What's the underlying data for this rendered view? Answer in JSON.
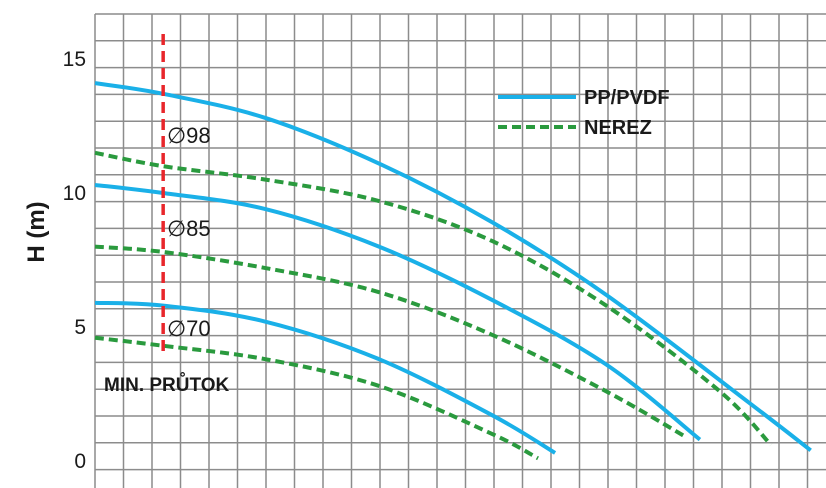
{
  "chart_data": {
    "type": "line",
    "title": "",
    "xlabel": "",
    "ylabel": "H (m)",
    "ylim": [
      0,
      16
    ],
    "yticks": [
      0,
      5,
      10,
      15
    ],
    "grid": true,
    "legend_position": "top-right",
    "legend": [
      {
        "label": "PP/PVDF",
        "style": "solid",
        "color": "#1ab0e8"
      },
      {
        "label": "NEREZ",
        "style": "dashed",
        "color": "#2a9a3e"
      }
    ],
    "series": [
      {
        "group": "∅98",
        "material": "PP/PVDF",
        "style": "solid",
        "color": "#1ab0e8",
        "points": [
          [
            0,
            14.1
          ],
          [
            2.4,
            13.7
          ],
          [
            6,
            12.8
          ],
          [
            10,
            11.1
          ],
          [
            14,
            8.9
          ],
          [
            18,
            6.2
          ],
          [
            23,
            2.2
          ],
          [
            25.2,
            0.4
          ]
        ]
      },
      {
        "group": "∅98",
        "material": "NEREZ",
        "style": "dashed",
        "color": "#2a9a3e",
        "points": [
          [
            0,
            11.5
          ],
          [
            2.4,
            11.0
          ],
          [
            6,
            10.5
          ],
          [
            10,
            9.7
          ],
          [
            14,
            8.2
          ],
          [
            18,
            5.8
          ],
          [
            22,
            2.6
          ],
          [
            23.8,
            0.6
          ]
        ]
      },
      {
        "group": "∅85",
        "material": "PP/PVDF",
        "style": "solid",
        "color": "#1ab0e8",
        "points": [
          [
            0,
            10.3
          ],
          [
            2.4,
            10.0
          ],
          [
            6,
            9.4
          ],
          [
            10,
            8.0
          ],
          [
            14,
            6.0
          ],
          [
            18,
            3.6
          ],
          [
            21.3,
            0.8
          ]
        ]
      },
      {
        "group": "∅85",
        "material": "NEREZ",
        "style": "dashed",
        "color": "#2a9a3e",
        "points": [
          [
            0,
            8.0
          ],
          [
            2.4,
            7.8
          ],
          [
            6,
            7.2
          ],
          [
            10,
            6.3
          ],
          [
            14,
            4.7
          ],
          [
            18,
            2.6
          ],
          [
            20.8,
            0.9
          ]
        ]
      },
      {
        "group": "∅70",
        "material": "PP/PVDF",
        "style": "solid",
        "color": "#1ab0e8",
        "points": [
          [
            0,
            5.9
          ],
          [
            2.4,
            5.8
          ],
          [
            6,
            5.2
          ],
          [
            10,
            3.8
          ],
          [
            14,
            1.7
          ],
          [
            16.2,
            0.3
          ]
        ]
      },
      {
        "group": "∅70",
        "material": "NEREZ",
        "style": "dashed",
        "color": "#2a9a3e",
        "points": [
          [
            0,
            4.6
          ],
          [
            2.4,
            4.3
          ],
          [
            6,
            3.8
          ],
          [
            10,
            2.8
          ],
          [
            14,
            1.0
          ],
          [
            15.6,
            0.1
          ]
        ]
      }
    ],
    "min_flow": {
      "x": 2.4,
      "label": "MIN. PRŮTOK",
      "color": "#e8262b"
    },
    "annotations": [
      "∅98",
      "∅85",
      "∅70"
    ]
  }
}
